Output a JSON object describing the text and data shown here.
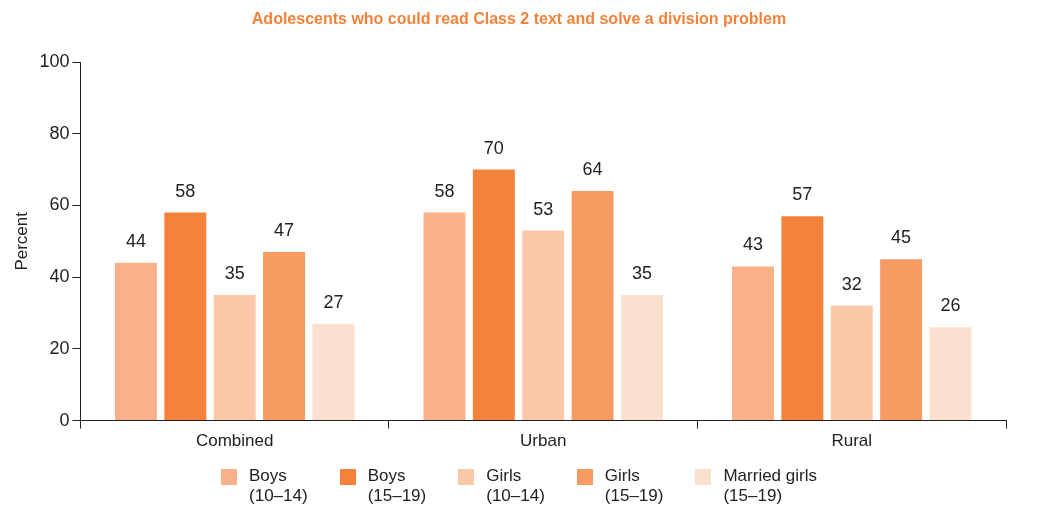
{
  "chart_data": {
    "type": "bar",
    "title": "Adolescents who could read Class 2 text and solve a division problem",
    "ylabel": "Percent",
    "categories": [
      "Combined",
      "Urban",
      "Rural"
    ],
    "series": [
      {
        "name": "Boys (10–14)",
        "color": "#f8b189",
        "values": [
          44,
          58,
          43
        ]
      },
      {
        "name": "Boys (15–19)",
        "color": "#f4823a",
        "values": [
          58,
          70,
          57
        ]
      },
      {
        "name": "Girls (10–14)",
        "color": "#fac8a8",
        "values": [
          35,
          53,
          32
        ]
      },
      {
        "name": "Girls (15–19)",
        "color": "#f69c62",
        "values": [
          47,
          64,
          45
        ]
      },
      {
        "name": "Married girls (15–19)",
        "color": "#fbdfcf",
        "values": [
          27,
          35,
          26
        ]
      }
    ],
    "ylim": [
      0,
      100
    ],
    "yticks": [
      0,
      20,
      40,
      60,
      80,
      100
    ],
    "grid": false,
    "legend": "bottom",
    "data_labels": true
  }
}
